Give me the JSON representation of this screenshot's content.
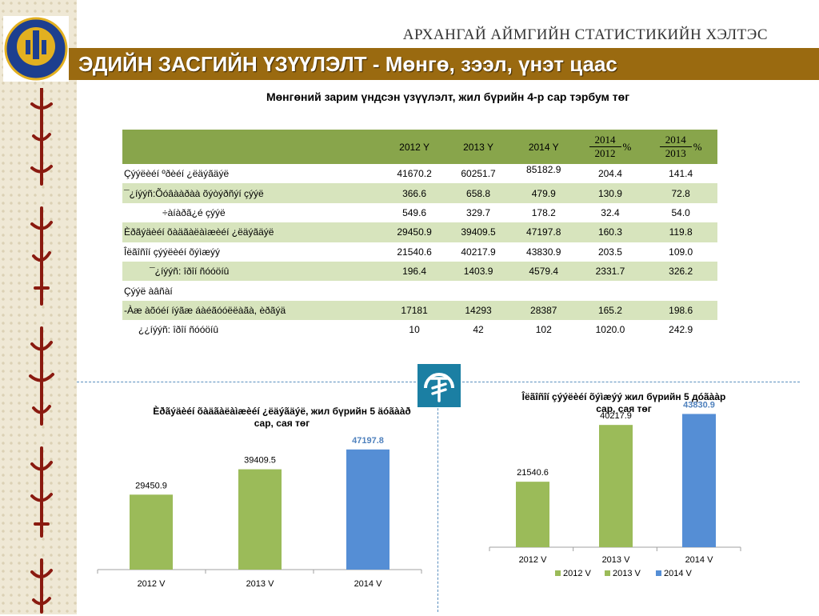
{
  "header": {
    "org": "АРХАНГАЙ АЙМГИЙН СТАТИСТИКИЙН ХЭЛТЭС",
    "title": "ЭДИЙН ЗАСГИЙН ҮЗҮҮЛЭЛТ - Мөнгө, зээл, үнэт цаас",
    "logo_text": "ҮНДЭСНИЙ СТАТИСТИК"
  },
  "subtitle": "Мөнгөний зарим үндсэн үзүүлэлт, жил бүрийн 4-р сар тэрбум төг",
  "table": {
    "columns": [
      "2012 Y",
      "2013 Y",
      "2014 Y"
    ],
    "ratio1": {
      "top": "2014",
      "bottom": "2012",
      "pct": "%"
    },
    "ratio2": {
      "top": "2014",
      "bottom": "2013",
      "pct": "%"
    },
    "rows": [
      {
        "label": "Çýýëèéí ºðèéí ¿ëäýãäýë",
        "values": [
          "41670.2",
          "60251.7",
          "85182.9",
          "204.4",
          "141.4"
        ]
      },
      {
        "label": "¯¿íýýñ:Õóâààðàà õýòýðñýí çýýë",
        "values": [
          "366.6",
          "658.8",
          "479.9",
          "130.9",
          "72.8"
        ]
      },
      {
        "label": "÷àíàðã¿é çýýë",
        "values": [
          "549.6",
          "329.7",
          "178.2",
          "32.4",
          "54.0"
        ]
      },
      {
        "label": "Èðãýäèéí õàäãàëàìæèéí ¿ëäýãäýë",
        "values": [
          "29450.9",
          "39409.5",
          "47197.8",
          "160.3",
          "119.8"
        ]
      },
      {
        "label": "Îëãîñîí çýýëèéí õýìæýý",
        "values": [
          "21540.6",
          "40217.9",
          "43830.9",
          "203.5",
          "109.0"
        ]
      },
      {
        "label": "¯¿íýýñ: îðîí ñóóöíû",
        "values": [
          "196.4",
          "1403.9",
          "4579.4",
          "2331.7",
          "326.2"
        ]
      },
      {
        "label": "Çýýë àâñàí",
        "values": [
          "",
          "",
          "",
          "",
          ""
        ]
      },
      {
        "label": "-Àæ àõóéí íýãæ áàéãóóëëàãà, èðãýä",
        "values": [
          "17181",
          "14293",
          "28387",
          "165.2",
          "198.6"
        ]
      },
      {
        "label": "¿¿íýýñ: îðîí ñóóöíû",
        "values": [
          "10",
          "42",
          "102",
          "1020.0",
          "242.9"
        ]
      }
    ]
  },
  "chart_data": [
    {
      "type": "bar",
      "title": "Èðãýäèéí õàäãàëàìæèéí ¿ëäýãäýë, жил бүрийн 5 äóãààð сар, сая төг",
      "categories": [
        "2012 V",
        "2013 V",
        "2014 V"
      ],
      "values": [
        29450.9,
        39409.5,
        47197.8
      ],
      "labels": [
        "29450.9",
        "39409.5",
        "47197.8"
      ],
      "colors": [
        "#9bbb59",
        "#9bbb59",
        "#558ed5"
      ],
      "ylim": [
        0,
        55000
      ]
    },
    {
      "type": "bar",
      "title": "Îëãîñîí çýýëèéí õýìæýý жил бүрийн 5 дóãààр сар, сая төг",
      "categories": [
        "2012 V",
        "2013 V",
        "2014 V"
      ],
      "values": [
        21540.6,
        40217.9,
        43830.9
      ],
      "labels": [
        "21540.6",
        "40217.9",
        "43830.9"
      ],
      "colors": [
        "#9bbb59",
        "#9bbb59",
        "#558ed5"
      ],
      "legend": [
        "2012 V",
        "2013 V",
        "2014 V"
      ],
      "legend_position": "bottom",
      "ylim": [
        0,
        45000
      ]
    }
  ]
}
